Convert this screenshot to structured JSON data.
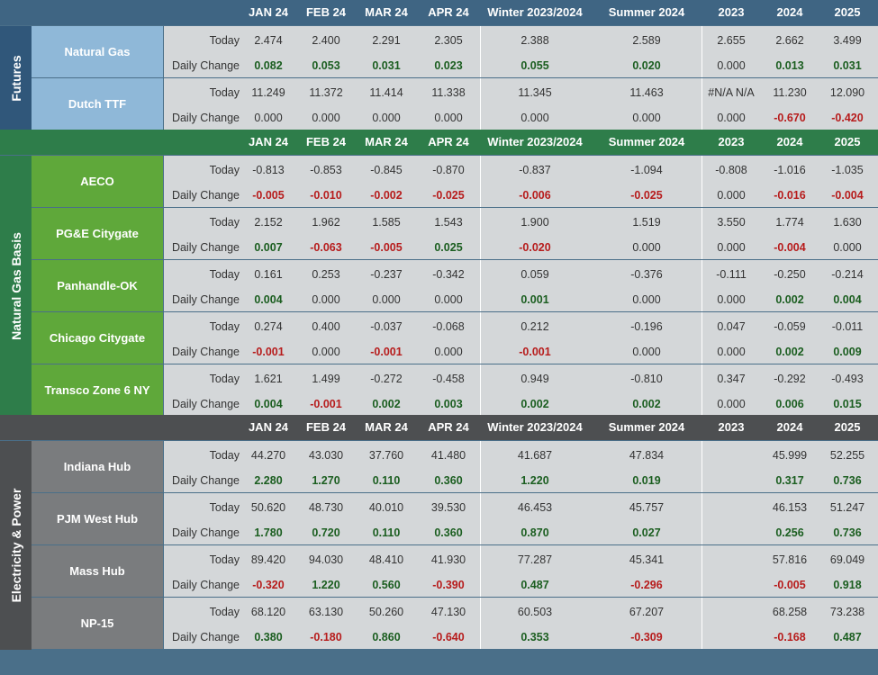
{
  "columns": [
    "JAN 24",
    "FEB 24",
    "MAR 24",
    "APR 24",
    "Winter 2023/2024",
    "Summer 2024",
    "2023",
    "2024",
    "2025"
  ],
  "labels": {
    "today": "Today",
    "change": "Daily Change"
  },
  "colors": {
    "header_top": "#3f6583",
    "header_green": "#2e7d4a",
    "header_gray": "#4d4f51",
    "page_bg": "#4a6f89"
  },
  "sections": [
    {
      "title": "Futures",
      "name_bg": "#8fb8d8",
      "title_bg": "#30577a",
      "rows": [
        {
          "name": "Natural Gas",
          "today": [
            "2.474",
            "2.400",
            "2.291",
            "2.305",
            "2.388",
            "2.589",
            "2.655",
            "2.662",
            "3.499"
          ],
          "change": [
            "0.082",
            "0.053",
            "0.031",
            "0.023",
            "0.055",
            "0.020",
            "0.000",
            "0.013",
            "0.031"
          ]
        },
        {
          "name": "Dutch TTF",
          "today": [
            "11.249",
            "11.372",
            "11.414",
            "11.338",
            "11.345",
            "11.463",
            "#N/A N/A",
            "11.230",
            "12.090"
          ],
          "change": [
            "0.000",
            "0.000",
            "0.000",
            "0.000",
            "0.000",
            "0.000",
            "0.000",
            "-0.670",
            "-0.420"
          ]
        }
      ]
    },
    {
      "title": "Natural Gas Basis",
      "name_bg": "#5fa83a",
      "title_bg": "#2e7d4a",
      "rows": [
        {
          "name": "AECO",
          "today": [
            "-0.813",
            "-0.853",
            "-0.845",
            "-0.870",
            "-0.837",
            "-1.094",
            "-0.808",
            "-1.016",
            "-1.035"
          ],
          "change": [
            "-0.005",
            "-0.010",
            "-0.002",
            "-0.025",
            "-0.006",
            "-0.025",
            "0.000",
            "-0.016",
            "-0.004"
          ]
        },
        {
          "name": "PG&E Citygate",
          "today": [
            "2.152",
            "1.962",
            "1.585",
            "1.543",
            "1.900",
            "1.519",
            "3.550",
            "1.774",
            "1.630"
          ],
          "change": [
            "0.007",
            "-0.063",
            "-0.005",
            "0.025",
            "-0.020",
            "0.000",
            "0.000",
            "-0.004",
            "0.000"
          ]
        },
        {
          "name": "Panhandle-OK",
          "today": [
            "0.161",
            "0.253",
            "-0.237",
            "-0.342",
            "0.059",
            "-0.376",
            "-0.111",
            "-0.250",
            "-0.214"
          ],
          "change": [
            "0.004",
            "0.000",
            "0.000",
            "0.000",
            "0.001",
            "0.000",
            "0.000",
            "0.002",
            "0.004"
          ]
        },
        {
          "name": "Chicago Citygate",
          "today": [
            "0.274",
            "0.400",
            "-0.037",
            "-0.068",
            "0.212",
            "-0.196",
            "0.047",
            "-0.059",
            "-0.011"
          ],
          "change": [
            "-0.001",
            "0.000",
            "-0.001",
            "0.000",
            "-0.001",
            "0.000",
            "0.000",
            "0.002",
            "0.009"
          ]
        },
        {
          "name": "Transco Zone 6 NY",
          "today": [
            "1.621",
            "1.499",
            "-0.272",
            "-0.458",
            "0.949",
            "-0.810",
            "0.347",
            "-0.292",
            "-0.493"
          ],
          "change": [
            "0.004",
            "-0.001",
            "0.002",
            "0.003",
            "0.002",
            "0.002",
            "0.000",
            "0.006",
            "0.015"
          ]
        }
      ]
    },
    {
      "title": "Electricity & Power",
      "name_bg": "#7a7c7e",
      "title_bg": "#4d4f51",
      "rows": [
        {
          "name": "Indiana Hub",
          "today": [
            "44.270",
            "43.030",
            "37.760",
            "41.480",
            "41.687",
            "47.834",
            "",
            "45.999",
            "52.255"
          ],
          "change": [
            "2.280",
            "1.270",
            "0.110",
            "0.360",
            "1.220",
            "0.019",
            "",
            "0.317",
            "0.736"
          ]
        },
        {
          "name": "PJM West Hub",
          "today": [
            "50.620",
            "48.730",
            "40.010",
            "39.530",
            "46.453",
            "45.757",
            "",
            "46.153",
            "51.247"
          ],
          "change": [
            "1.780",
            "0.720",
            "0.110",
            "0.360",
            "0.870",
            "0.027",
            "",
            "0.256",
            "0.736"
          ]
        },
        {
          "name": "Mass Hub",
          "today": [
            "89.420",
            "94.030",
            "48.410",
            "41.930",
            "77.287",
            "45.341",
            "",
            "57.816",
            "69.049"
          ],
          "change": [
            "-0.320",
            "1.220",
            "0.560",
            "-0.390",
            "0.487",
            "-0.296",
            "",
            "-0.005",
            "0.918"
          ]
        },
        {
          "name": "NP-15",
          "today": [
            "68.120",
            "63.130",
            "50.260",
            "47.130",
            "60.503",
            "67.207",
            "",
            "68.258",
            "73.238"
          ],
          "change": [
            "0.380",
            "-0.180",
            "0.860",
            "-0.640",
            "0.353",
            "-0.309",
            "",
            "-0.168",
            "0.487"
          ]
        }
      ]
    }
  ]
}
